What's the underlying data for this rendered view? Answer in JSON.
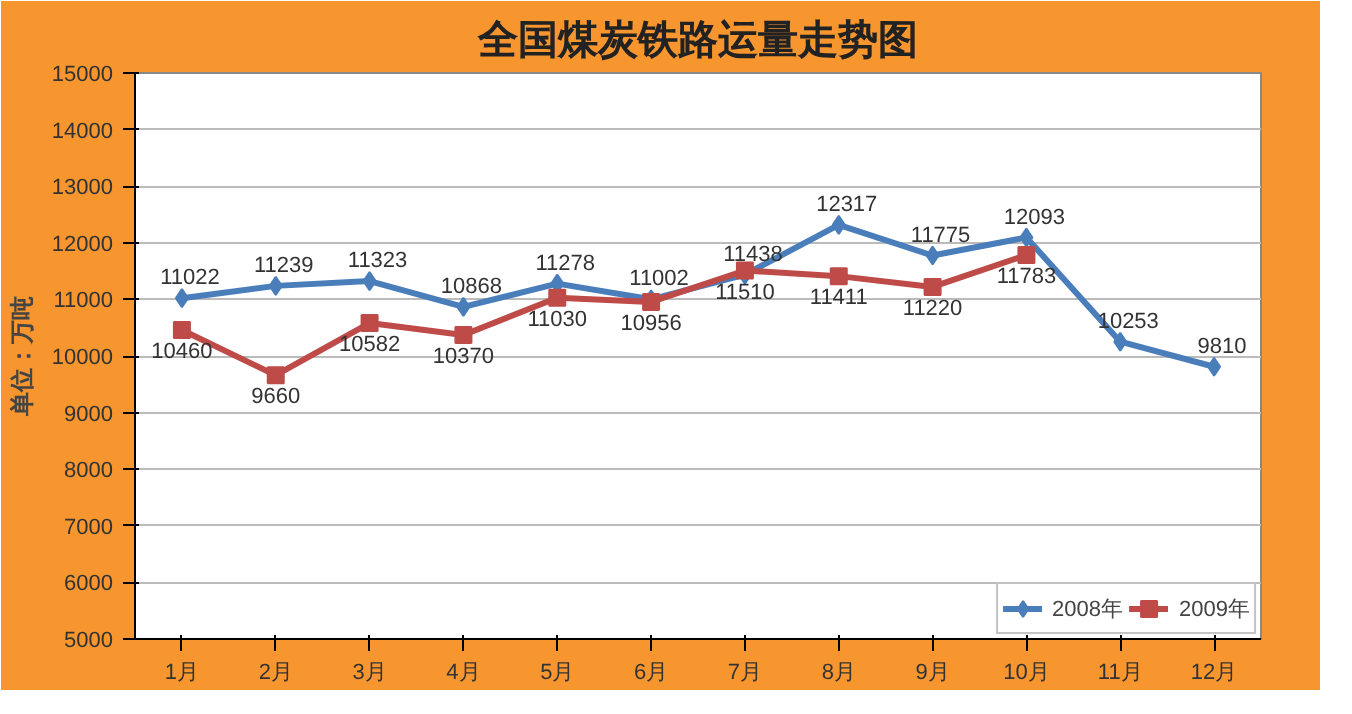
{
  "chart_data": {
    "type": "line",
    "title": "全国煤炭铁路运量走势图",
    "ylabel": "单位：万吨",
    "categories": [
      "1月",
      "2月",
      "3月",
      "4月",
      "5月",
      "6月",
      "7月",
      "8月",
      "9月",
      "10月",
      "11月",
      "12月"
    ],
    "series": [
      {
        "name": "2008年",
        "color": "#4a7ebb",
        "marker": "diamond",
        "values": [
          11022,
          11239,
          11323,
          10868,
          11278,
          11002,
          11438,
          12317,
          11775,
          12093,
          10253,
          9810
        ]
      },
      {
        "name": "2009年",
        "color": "#be4b48",
        "marker": "square",
        "values": [
          10460,
          9660,
          10582,
          10370,
          11030,
          10956,
          11510,
          11411,
          11220,
          11783,
          null,
          null
        ]
      }
    ],
    "ylim": [
      5000,
      15000
    ],
    "yticks": [
      5000,
      6000,
      7000,
      8000,
      9000,
      10000,
      11000,
      12000,
      13000,
      14000,
      15000
    ],
    "grid": "y",
    "legend": "bottom right",
    "data_labels": true,
    "line_style": "solid"
  }
}
